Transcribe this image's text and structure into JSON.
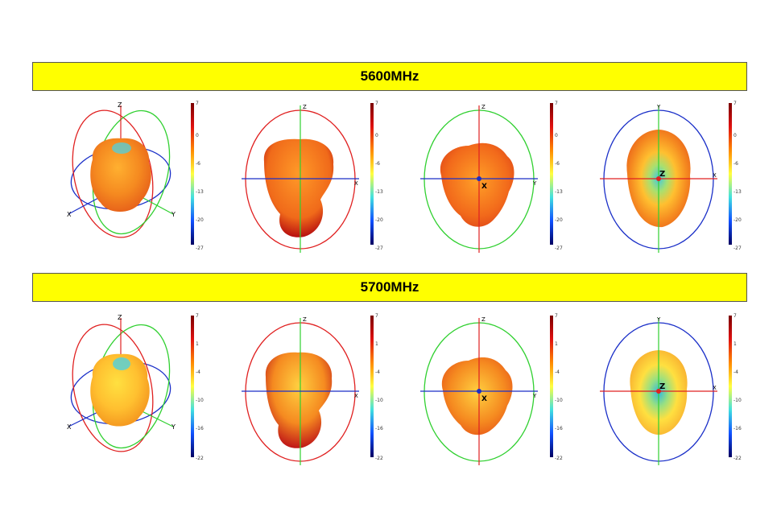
{
  "sections": [
    {
      "title": "5600MHz",
      "colorbar_ticks": [
        "7",
        "0",
        "-6",
        "-13",
        "-20",
        "-27"
      ],
      "views": [
        {
          "view": "iso",
          "labels": [
            "Z",
            "X",
            "Y"
          ]
        },
        {
          "view": "zx",
          "labels": [
            "Z",
            "X"
          ]
        },
        {
          "view": "zy",
          "labels": [
            "Z",
            "Y",
            "X"
          ]
        },
        {
          "view": "yx",
          "labels": [
            "Y",
            "X",
            "Z"
          ]
        }
      ]
    },
    {
      "title": "5700MHz",
      "colorbar_ticks": [
        "7",
        "1",
        "-4",
        "-10",
        "-16",
        "-22"
      ],
      "views": [
        {
          "view": "iso",
          "labels": [
            "Z",
            "X",
            "Y"
          ]
        },
        {
          "view": "zx",
          "labels": [
            "Z",
            "X"
          ]
        },
        {
          "view": "zy",
          "labels": [
            "Z",
            "Y",
            "X"
          ]
        },
        {
          "view": "yx",
          "labels": [
            "Y",
            "X",
            "Z"
          ]
        }
      ]
    }
  ],
  "colors": {
    "band": "#ffff00",
    "axis_red": "#e02020",
    "axis_green": "#30d030",
    "axis_blue": "#1a2fc8",
    "pattern_main": "#f26a1b",
    "pattern_low": "#4fd0e0"
  }
}
